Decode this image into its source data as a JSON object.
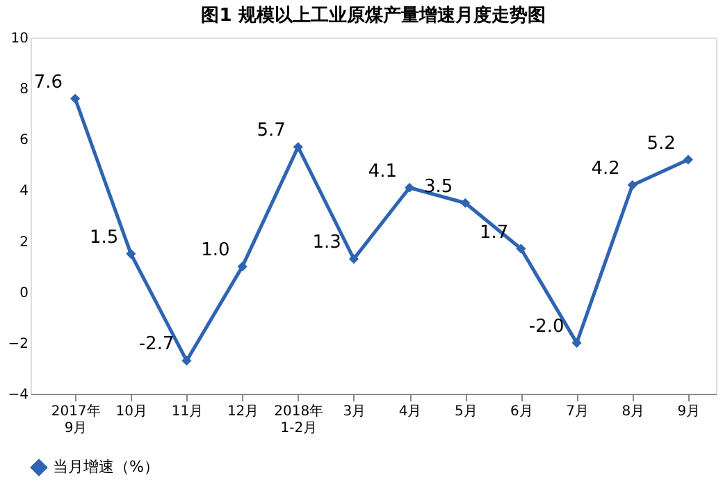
{
  "chart_data": {
    "type": "line",
    "title": "图1  规模以上工业原煤产量增速月度走势图",
    "categories": [
      "2017年9月",
      "10月",
      "11月",
      "12月",
      "2018年1-2月",
      "3月",
      "4月",
      "5月",
      "6月",
      "7月",
      "8月",
      "9月"
    ],
    "series": [
      {
        "name": "当月增速（%）",
        "color": "#2e64b2",
        "values": [
          7.6,
          1.5,
          -2.7,
          1.0,
          5.7,
          1.3,
          4.1,
          3.5,
          1.7,
          -2.0,
          4.2,
          5.2
        ],
        "value_labels": [
          "7.6",
          "1.5",
          "-2.7",
          "1.0",
          "5.7",
          "1.3",
          "4.1",
          "3.5",
          "1.7",
          "-2.0",
          "4.2",
          "5.2"
        ]
      }
    ],
    "ylim": [
      -4,
      10
    ],
    "yticks": [
      -4,
      -2,
      0,
      2,
      4,
      6,
      8,
      10
    ],
    "grid": false,
    "legend": "bottom",
    "marker": "diamond",
    "line_style": "solid"
  }
}
